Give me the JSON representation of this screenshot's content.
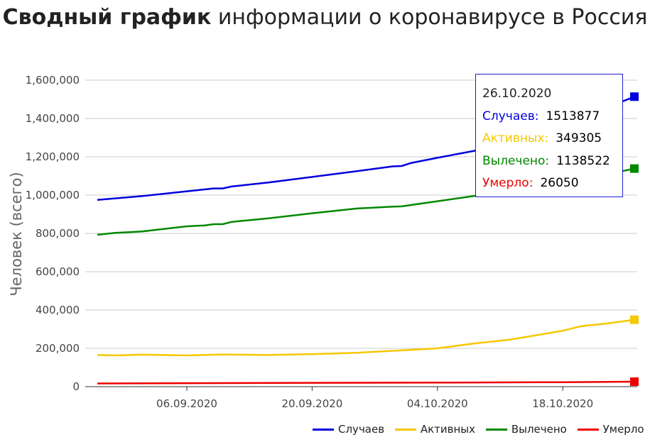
{
  "chart_data": {
    "type": "line",
    "title_bold": "Сводный график",
    "title_rest": " информации о коронавирусе в Россия",
    "ylabel": "Человек (всего)",
    "xlabel": "",
    "ylim": [
      0,
      1600000
    ],
    "y_ticks": [
      0,
      200000,
      400000,
      600000,
      800000,
      1000000,
      1200000,
      1400000,
      1600000
    ],
    "y_tick_labels": [
      "0",
      "200,000",
      "400,000",
      "600,000",
      "800,000",
      "1,000,000",
      "1,200,000",
      "1,400,000",
      "1,600,000"
    ],
    "x_start": "2020-08-27",
    "x_end": "2020-10-26",
    "x_ticks": [
      {
        "date": "2020-09-06",
        "label": "06.09.2020"
      },
      {
        "date": "2020-09-20",
        "label": "20.09.2020"
      },
      {
        "date": "2020-10-04",
        "label": "04.10.2020"
      },
      {
        "date": "2020-10-18",
        "label": "18.10.2020"
      }
    ],
    "grid": true,
    "legend_position": "bottom-right",
    "series": [
      {
        "name": "Случаев",
        "color": "#0000dd",
        "points": [
          [
            "2020-08-27",
            975000
          ],
          [
            "2020-09-01",
            995000
          ],
          [
            "2020-09-06",
            1020000
          ],
          [
            "2020-09-09",
            1035000
          ],
          [
            "2020-09-10",
            1035000
          ],
          [
            "2020-09-11",
            1045000
          ],
          [
            "2020-09-15",
            1065000
          ],
          [
            "2020-09-20",
            1095000
          ],
          [
            "2020-09-25",
            1125000
          ],
          [
            "2020-09-29",
            1150000
          ],
          [
            "2020-09-30",
            1152000
          ],
          [
            "2020-10-01",
            1167000
          ],
          [
            "2020-10-04",
            1195000
          ],
          [
            "2020-10-08",
            1230000
          ],
          [
            "2020-10-12",
            1270000
          ],
          [
            "2020-10-15",
            1320000
          ],
          [
            "2020-10-18",
            1370000
          ],
          [
            "2020-10-22",
            1440000
          ],
          [
            "2020-10-26",
            1513877
          ]
        ]
      },
      {
        "name": "Активных",
        "color": "#f5c800",
        "points": [
          [
            "2020-08-27",
            165000
          ],
          [
            "2020-08-29",
            163000
          ],
          [
            "2020-09-01",
            167000
          ],
          [
            "2020-09-06",
            163000
          ],
          [
            "2020-09-10",
            168000
          ],
          [
            "2020-09-15",
            165000
          ],
          [
            "2020-09-20",
            170000
          ],
          [
            "2020-09-25",
            177000
          ],
          [
            "2020-09-29",
            187000
          ],
          [
            "2020-10-04",
            200000
          ],
          [
            "2020-10-08",
            225000
          ],
          [
            "2020-10-12",
            245000
          ],
          [
            "2020-10-15",
            268000
          ],
          [
            "2020-10-18",
            292000
          ],
          [
            "2020-10-20",
            315000
          ],
          [
            "2020-10-23",
            330000
          ],
          [
            "2020-10-26",
            349305
          ]
        ]
      },
      {
        "name": "Вылечено",
        "color": "#008800",
        "points": [
          [
            "2020-08-27",
            793000
          ],
          [
            "2020-08-29",
            803000
          ],
          [
            "2020-09-01",
            810000
          ],
          [
            "2020-09-06",
            837000
          ],
          [
            "2020-09-08",
            842000
          ],
          [
            "2020-09-09",
            848000
          ],
          [
            "2020-09-10",
            848000
          ],
          [
            "2020-09-11",
            860000
          ],
          [
            "2020-09-15",
            878000
          ],
          [
            "2020-09-20",
            905000
          ],
          [
            "2020-09-25",
            930000
          ],
          [
            "2020-09-29",
            940000
          ],
          [
            "2020-09-30",
            941000
          ],
          [
            "2020-10-04",
            968000
          ],
          [
            "2020-10-08",
            995000
          ],
          [
            "2020-10-12",
            1020000
          ],
          [
            "2020-10-18",
            1060000
          ],
          [
            "2020-10-22",
            1100000
          ],
          [
            "2020-10-26",
            1138522
          ]
        ]
      },
      {
        "name": "Умерло",
        "color": "#ee0000",
        "points": [
          [
            "2020-08-27",
            16800
          ],
          [
            "2020-09-06",
            18000
          ],
          [
            "2020-09-20",
            19900
          ],
          [
            "2020-10-04",
            21000
          ],
          [
            "2020-10-18",
            23500
          ],
          [
            "2020-10-26",
            26050
          ]
        ]
      }
    ],
    "tooltip": {
      "date": "26.10.2020",
      "rows": [
        {
          "label": "Случаев:",
          "value": "1513877",
          "color": "#0000dd"
        },
        {
          "label": "Активных:",
          "value": "349305",
          "color": "#f5c800"
        },
        {
          "label": "Вылечено:",
          "value": "1138522",
          "color": "#008800"
        },
        {
          "label": "Умерло:",
          "value": "26050",
          "color": "#ee0000"
        }
      ]
    }
  }
}
